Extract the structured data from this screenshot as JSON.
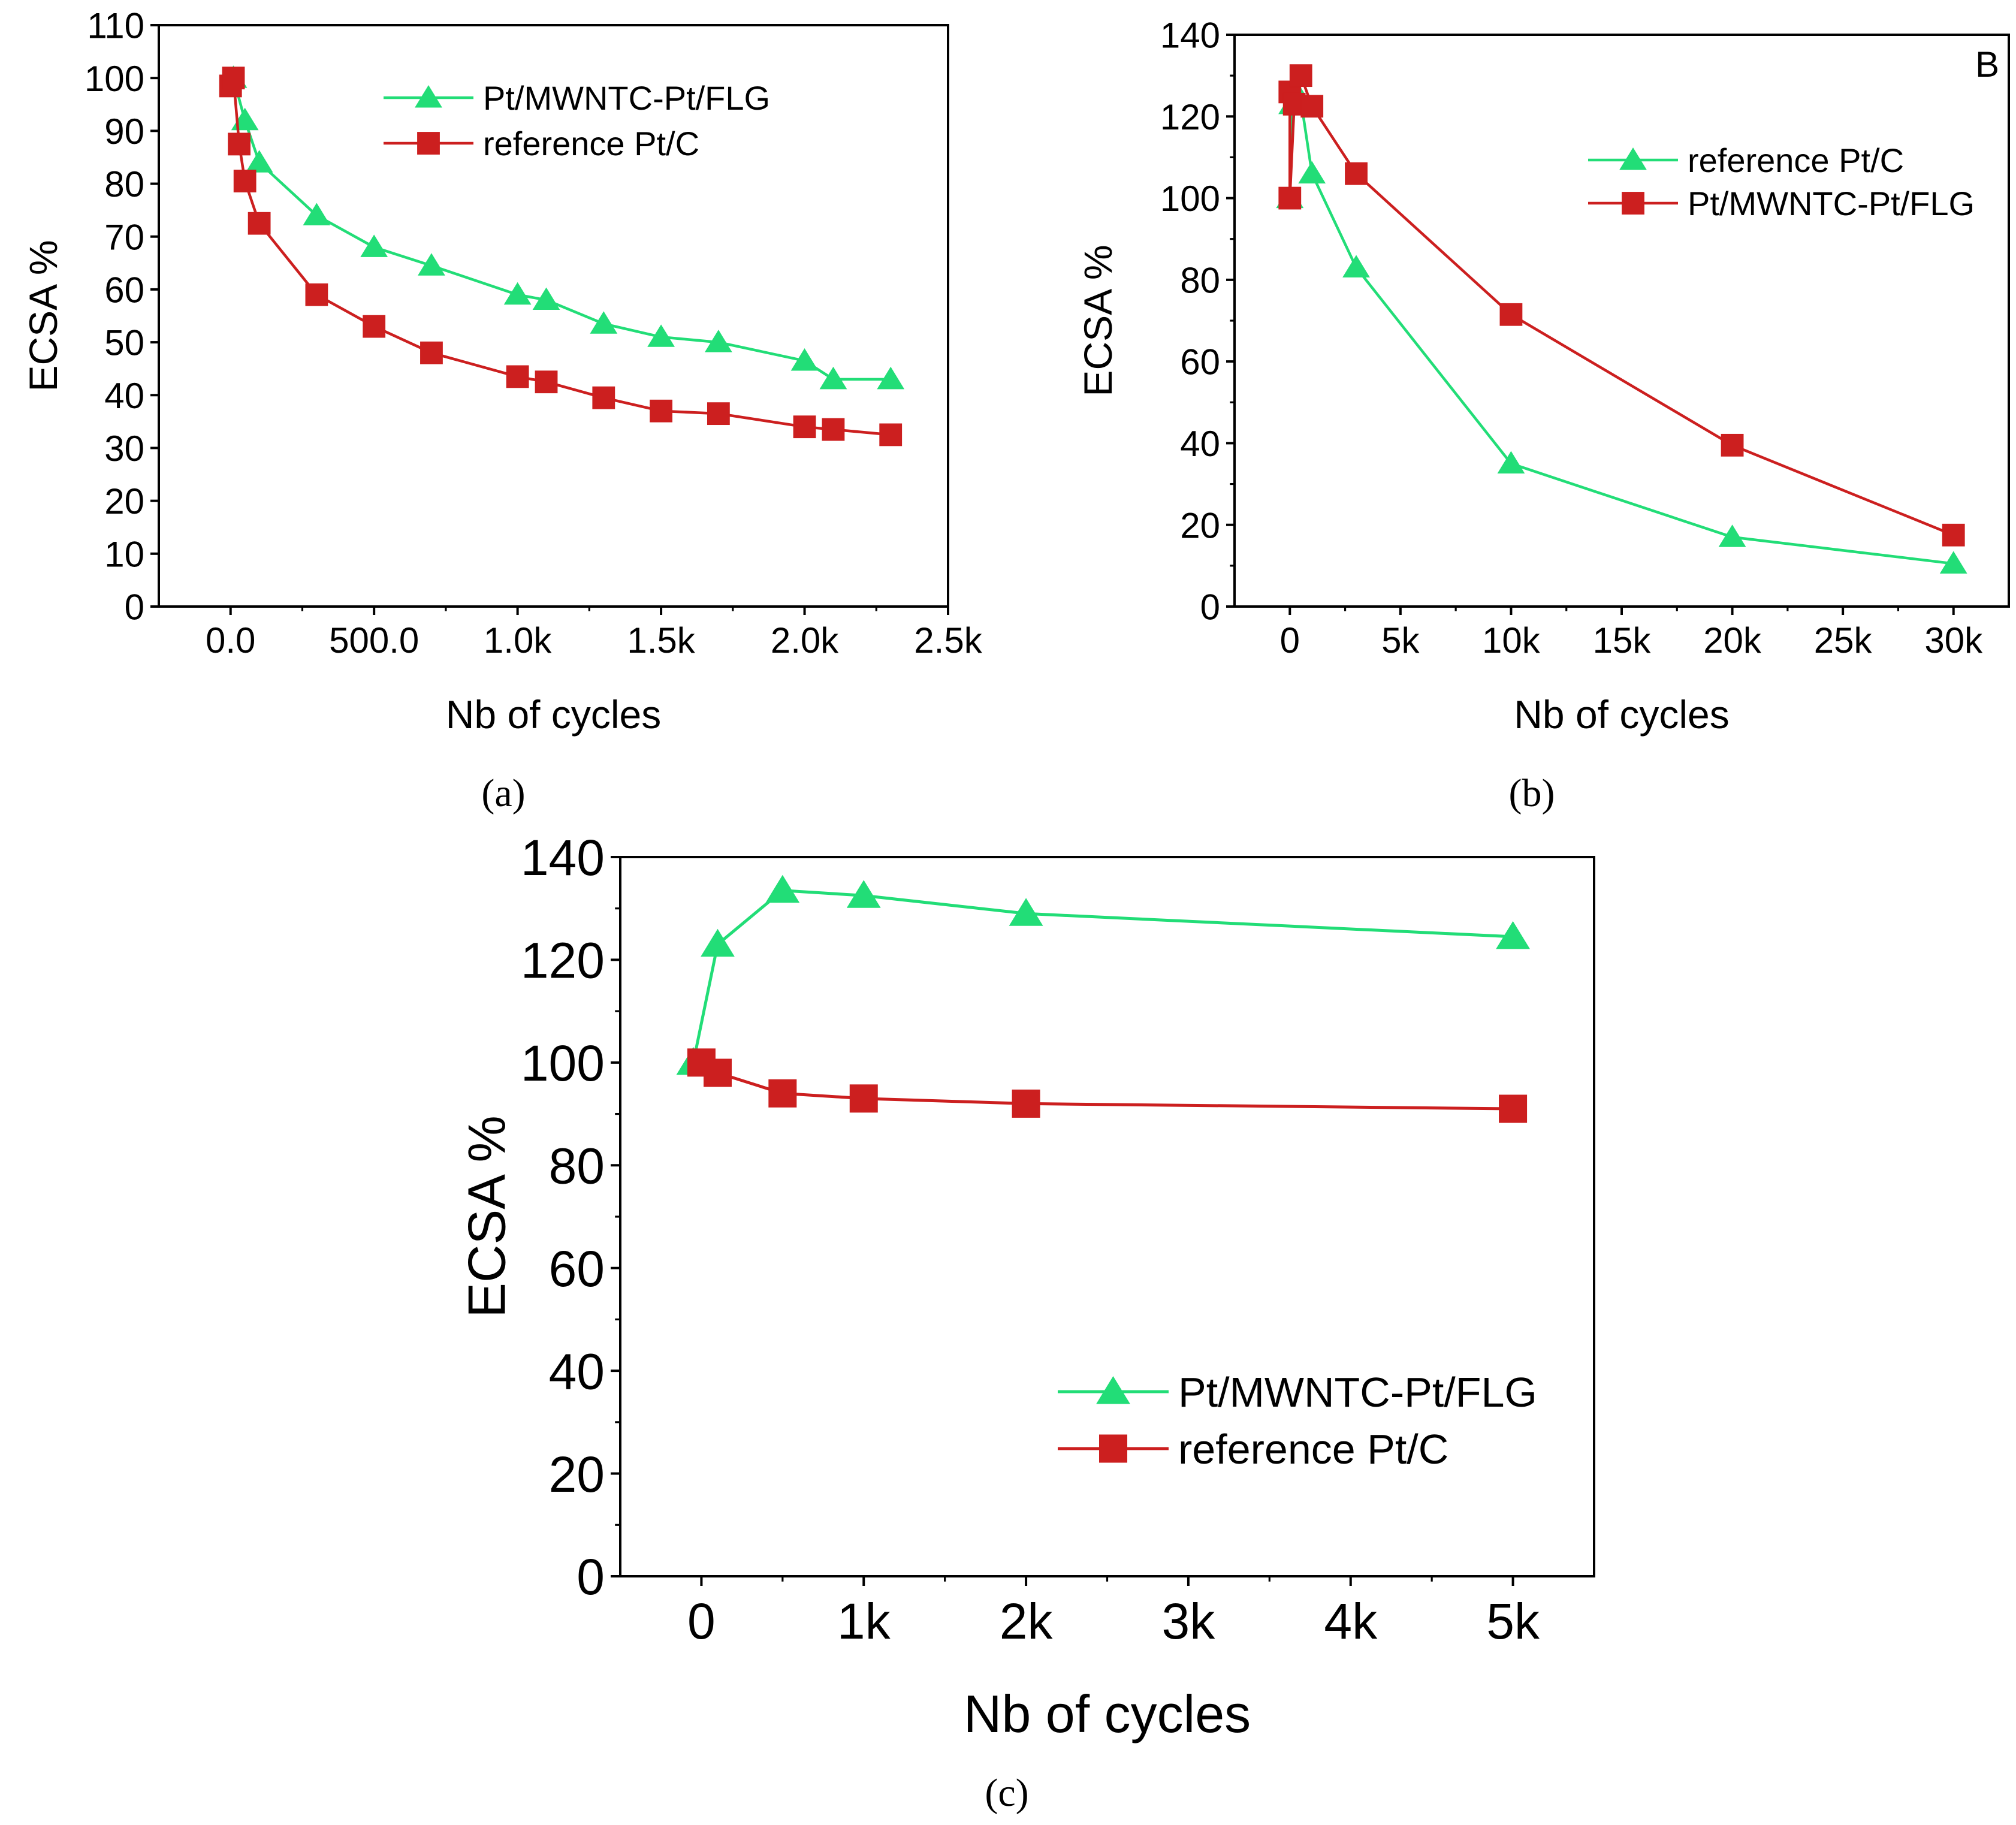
{
  "chart_data": [
    {
      "id": "a",
      "type": "line",
      "panel_label": "(a)",
      "corner_label": "",
      "xlabel": "Nb of cycles",
      "ylabel": "ECSA %",
      "xlim": [
        -250,
        2500
      ],
      "ylim": [
        0,
        110
      ],
      "xticks": [
        0,
        500,
        1000,
        1500,
        2000,
        2500
      ],
      "xtick_labels": [
        "0.0",
        "500.0",
        "1.0k",
        "1.5k",
        "2.0k",
        "2.5k"
      ],
      "yticks": [
        0,
        10,
        20,
        30,
        40,
        50,
        60,
        70,
        80,
        90,
        100,
        110
      ],
      "ytick_labels": [
        "0",
        "10",
        "20",
        "30",
        "40",
        "50",
        "60",
        "70",
        "80",
        "90",
        "100",
        "110"
      ],
      "legend_position": "top-center",
      "series": [
        {
          "name": "Pt/MWNTC-Pt/FLG",
          "marker": "triangle",
          "color": "#22dd77",
          "x": [
            10,
            50,
            100,
            300,
            500,
            700,
            1000,
            1100,
            1300,
            1500,
            1700,
            2000,
            2100,
            2300
          ],
          "y": [
            100,
            92,
            84,
            74,
            68,
            64.5,
            59,
            58,
            53.5,
            51,
            50,
            46.5,
            43,
            43
          ]
        },
        {
          "name": "reference Pt/C",
          "marker": "square",
          "color": "#cc1f1f",
          "x": [
            0,
            10,
            30,
            50,
            100,
            300,
            500,
            700,
            1000,
            1100,
            1300,
            1500,
            1700,
            2000,
            2100,
            2300
          ],
          "y": [
            98.5,
            100,
            87.5,
            80.5,
            72.5,
            59,
            53,
            48,
            43.5,
            42.5,
            39.5,
            37,
            36.5,
            34,
            33.5,
            32.5
          ]
        }
      ]
    },
    {
      "id": "b",
      "type": "line",
      "panel_label": "(b)",
      "corner_label": "B",
      "xlabel": "Nb of cycles",
      "ylabel": "ECSA %",
      "xlim": [
        -2500,
        32500
      ],
      "ylim": [
        0,
        140
      ],
      "xticks": [
        0,
        5000,
        10000,
        15000,
        20000,
        25000,
        30000
      ],
      "xtick_labels": [
        "0",
        "5k",
        "10k",
        "15k",
        "20k",
        "25k",
        "30k"
      ],
      "yticks": [
        0,
        20,
        40,
        60,
        80,
        100,
        120,
        140
      ],
      "ytick_labels": [
        "0",
        "20",
        "40",
        "60",
        "80",
        "100",
        "120",
        "140"
      ],
      "legend_position": "top-right",
      "series": [
        {
          "name": "reference Pt/C",
          "marker": "triangle",
          "color": "#22dd77",
          "x": [
            0,
            100,
            500,
            1000,
            3000,
            10000,
            20000,
            30000
          ],
          "y": [
            100,
            123,
            124,
            106,
            83,
            35,
            17,
            10.5
          ]
        },
        {
          "name": "Pt/MWNTC-Pt/FLG",
          "marker": "square",
          "color": "#cc1f1f",
          "x": [
            0,
            0,
            200,
            500,
            1000,
            3000,
            10000,
            20000,
            30000
          ],
          "y": [
            126,
            100,
            123,
            130,
            122.5,
            106,
            71.5,
            39.5,
            17.5
          ]
        }
      ]
    },
    {
      "id": "c",
      "type": "line",
      "panel_label": "(c)",
      "corner_label": "",
      "xlabel": "Nb of cycles",
      "ylabel": "ECSA %",
      "xlim": [
        -500,
        5500
      ],
      "ylim": [
        0,
        140
      ],
      "xticks": [
        0,
        1000,
        2000,
        3000,
        4000,
        5000
      ],
      "xtick_labels": [
        "0",
        "1k",
        "2k",
        "3k",
        "4k",
        "5k"
      ],
      "yticks": [
        0,
        20,
        40,
        60,
        80,
        100,
        120,
        140
      ],
      "ytick_labels": [
        "0",
        "20",
        "40",
        "60",
        "80",
        "100",
        "120",
        "140"
      ],
      "legend_position": "bottom-right",
      "series": [
        {
          "name": "Pt/MWNTC-Pt/FLG",
          "marker": "triangle",
          "color": "#22dd77",
          "x": [
            -50,
            100,
            500,
            1000,
            2000,
            5000
          ],
          "y": [
            100,
            123,
            133.5,
            132.5,
            129,
            124.5
          ]
        },
        {
          "name": "reference Pt/C",
          "marker": "square",
          "color": "#cc1f1f",
          "x": [
            0,
            100,
            500,
            1000,
            2000,
            5000
          ],
          "y": [
            100,
            98,
            94,
            93,
            92,
            91
          ]
        }
      ]
    }
  ]
}
